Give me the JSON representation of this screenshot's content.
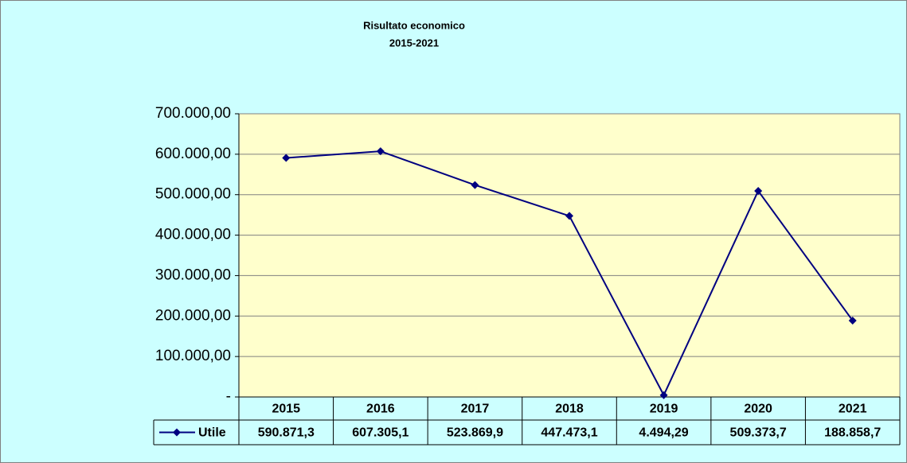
{
  "chart_data": {
    "type": "line",
    "title": "Risultato economico",
    "subtitle": "2015-2021",
    "categories": [
      "2015",
      "2016",
      "2017",
      "2018",
      "2019",
      "2020",
      "2021"
    ],
    "series": [
      {
        "name": "Utile",
        "color": "#000080",
        "values": [
          590871.3,
          607305.1,
          523869.9,
          447473.1,
          4494.29,
          509373.7,
          188858.7
        ],
        "value_labels": [
          "590.871,3",
          "607.305,1",
          "523.869,9",
          "447.473,1",
          "4.494,29",
          "509.373,7",
          "188.858,7"
        ]
      }
    ],
    "ylim": [
      0,
      700000
    ],
    "yticks": [
      {
        "value": 0,
        "label": "-"
      },
      {
        "value": 100000,
        "label": "100.000,00"
      },
      {
        "value": 200000,
        "label": "200.000,00"
      },
      {
        "value": 300000,
        "label": "300.000,00"
      },
      {
        "value": 400000,
        "label": "400.000,00"
      },
      {
        "value": 500000,
        "label": "500.000,00"
      },
      {
        "value": 600000,
        "label": "600.000,00"
      },
      {
        "value": 700000,
        "label": "700.000,00"
      }
    ],
    "grid": true
  }
}
